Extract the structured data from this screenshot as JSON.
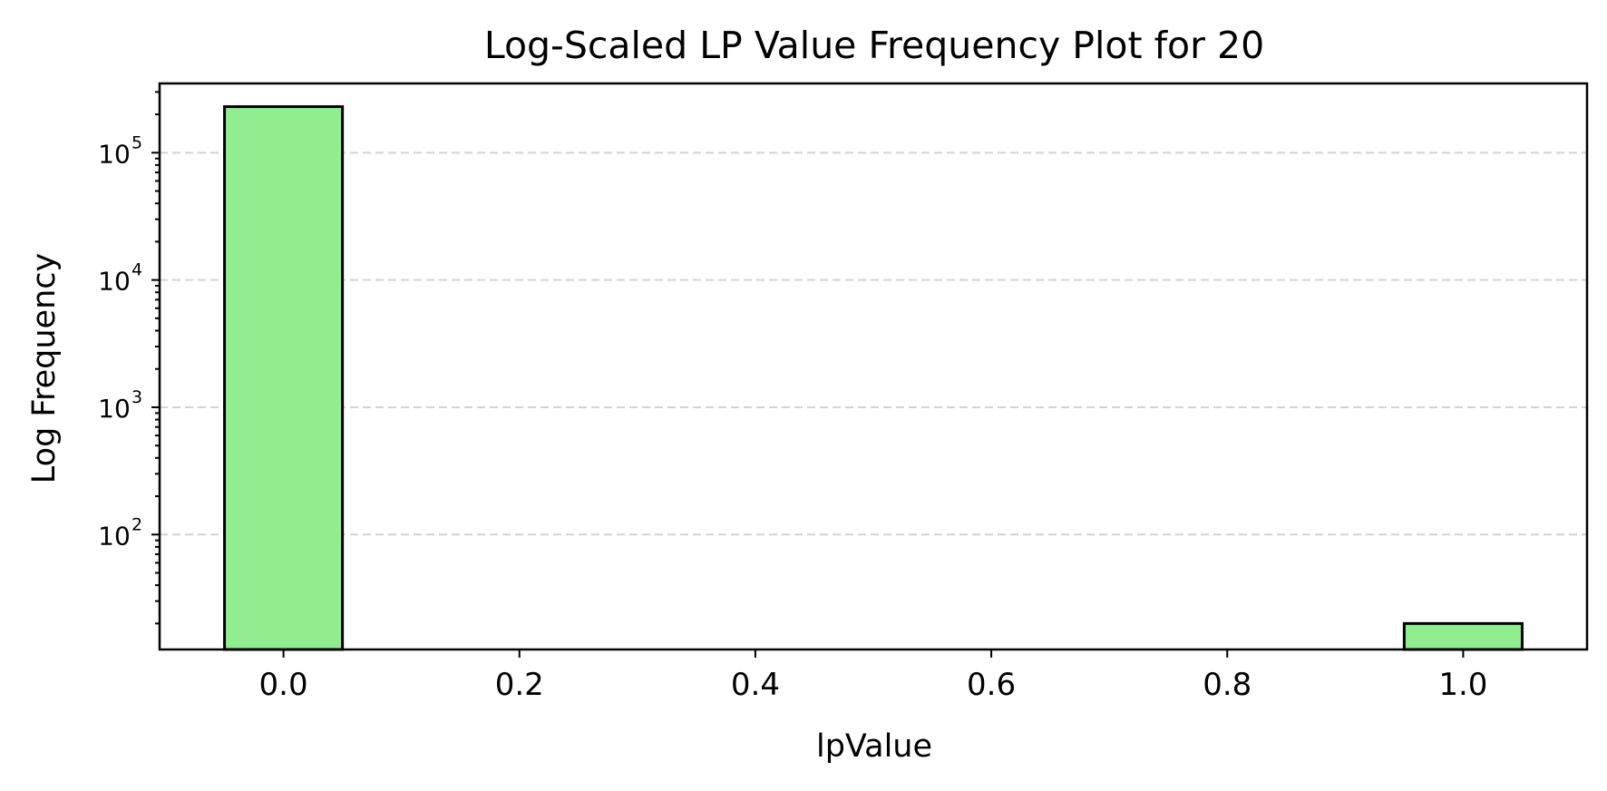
{
  "chart_data": {
    "type": "bar",
    "title": "Log-Scaled LP Value Frequency Plot for 20",
    "xlabel": "lpValue",
    "ylabel": "Log Frequency",
    "y_scale": "log",
    "x": [
      0.0,
      1.0
    ],
    "values": [
      230000,
      20
    ],
    "bar_width": 0.1,
    "xlim": [
      -0.105,
      1.105
    ],
    "ylim": [
      12.5,
      350000
    ],
    "xticks": [
      0.0,
      0.2,
      0.4,
      0.6,
      0.8,
      1.0
    ],
    "xtick_labels": [
      "0.0",
      "0.2",
      "0.4",
      "0.6",
      "0.8",
      "1.0"
    ],
    "yticks": [
      100,
      1000,
      10000,
      100000
    ],
    "ytick_bases": [
      "10",
      "10",
      "10",
      "10"
    ],
    "ytick_exponents": [
      "2",
      "3",
      "4",
      "5"
    ],
    "grid": "y-dashed",
    "legend": "none",
    "colors": {
      "bar_fill": "#90ee90",
      "bar_edge": "#000000",
      "grid": "#d3d3d3"
    }
  }
}
